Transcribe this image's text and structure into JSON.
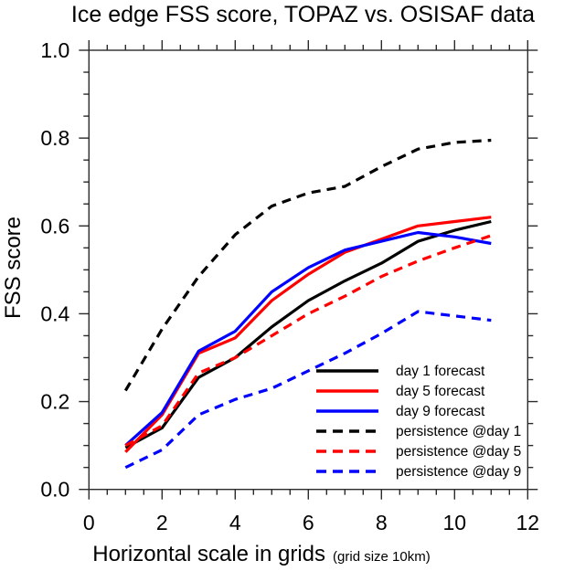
{
  "figure": {
    "title": "Ice edge FSS score, TOPAZ vs. OSISAF data"
  },
  "chart_data": {
    "type": "line",
    "title": "Ice edge FSS score, TOPAZ vs. OSISAF data",
    "xlabel": "Horizontal scale in grids",
    "xlabel_note": "(grid size 10km)",
    "ylabel": "FSS score",
    "xlim": [
      0,
      12
    ],
    "ylim": [
      0.0,
      1.0
    ],
    "x_major_ticks": [
      0,
      2,
      4,
      6,
      8,
      10,
      12
    ],
    "x_minor_step": 0.5,
    "y_major_ticks": [
      "0.0",
      "0.2",
      "0.4",
      "0.6",
      "0.8",
      "1.0"
    ],
    "y_minor_step": 0.05,
    "grid": false,
    "legend_position": "inside-lower-right",
    "x": [
      1,
      2,
      3,
      4,
      5,
      6,
      7,
      8,
      9,
      10,
      11
    ],
    "series": [
      {
        "name": "day 1 forecast",
        "color": "#000000",
        "style": "solid",
        "values": [
          0.095,
          0.14,
          0.255,
          0.3,
          0.37,
          0.43,
          0.475,
          0.515,
          0.565,
          0.59,
          0.61
        ]
      },
      {
        "name": "day 5 forecast",
        "color": "#ff0000",
        "style": "solid",
        "values": [
          0.085,
          0.17,
          0.31,
          0.345,
          0.43,
          0.49,
          0.54,
          0.57,
          0.6,
          0.61,
          0.62
        ]
      },
      {
        "name": "day 9 forecast",
        "color": "#0000ff",
        "style": "solid",
        "values": [
          0.1,
          0.175,
          0.315,
          0.36,
          0.45,
          0.505,
          0.545,
          0.565,
          0.585,
          0.575,
          0.56
        ]
      },
      {
        "name": "persistence @day 1",
        "color": "#000000",
        "style": "dashed",
        "values": [
          0.225,
          0.365,
          0.485,
          0.58,
          0.645,
          0.675,
          0.69,
          0.735,
          0.775,
          0.79,
          0.795
        ]
      },
      {
        "name": "persistence @day 5",
        "color": "#ff0000",
        "style": "dashed",
        "values": [
          0.1,
          0.145,
          0.265,
          0.3,
          0.35,
          0.4,
          0.44,
          0.485,
          0.52,
          0.55,
          0.578
        ]
      },
      {
        "name": "persistence @day 9",
        "color": "#0000ff",
        "style": "dashed",
        "values": [
          0.05,
          0.09,
          0.17,
          0.205,
          0.23,
          0.27,
          0.31,
          0.355,
          0.405,
          0.395,
          0.385
        ]
      }
    ],
    "axis_color": "#2b2b2b"
  }
}
